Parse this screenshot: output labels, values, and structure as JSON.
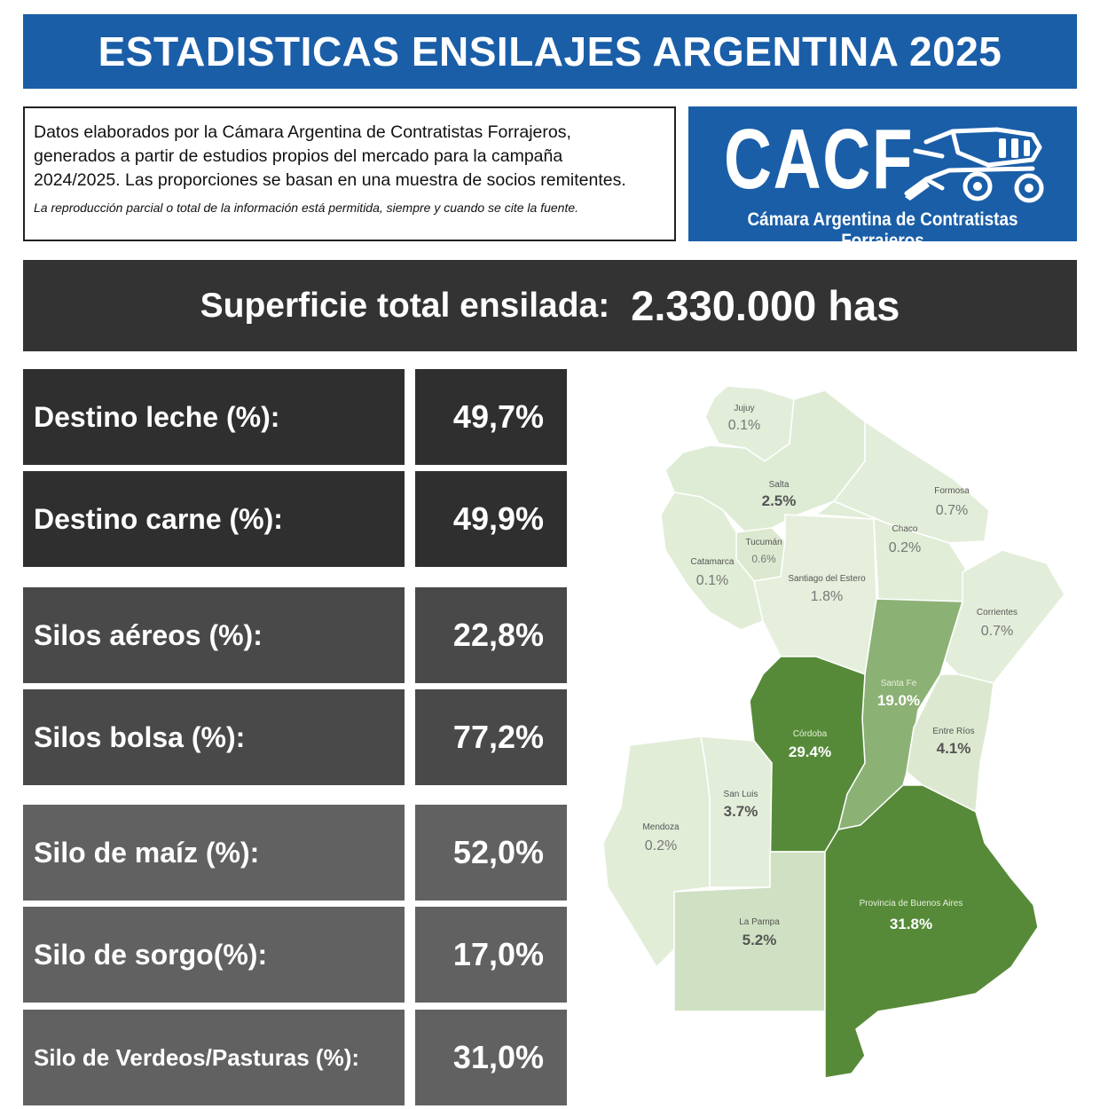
{
  "header": {
    "title": "ESTADISTICAS ENSILAJES ARGENTINA 2025"
  },
  "info": {
    "line1": "Datos elaborados por la Cámara Argentina de Contratistas Forrajeros,",
    "line2": "generados a partir de estudios propios del mercado para la campaña",
    "line3": "2024/2025. Las proporciones se basan en una muestra de socios remitentes.",
    "note": "La reproducción parcial o total de la información está permitida, siempre y cuando se cite la fuente."
  },
  "logo": {
    "acronym": "CACF",
    "subtitle": "Cámara Argentina de Contratistas Forrajeros",
    "color": "#1a5ea8"
  },
  "total": {
    "label": "Superficie total ensilada:",
    "value": "2.330.000 has"
  },
  "stats": [
    {
      "label": "Destino leche (%):",
      "value": "49,7%"
    },
    {
      "label": "Destino carne (%):",
      "value": "49,9%"
    },
    {
      "label": "Silos aéreos (%):",
      "value": "22,8%"
    },
    {
      "label": "Silos bolsa (%):",
      "value": "77,2%"
    },
    {
      "label": "Silo de maíz (%):",
      "value": "52,0%"
    },
    {
      "label": "Silo de sorgo(%):",
      "value": "17,0%"
    },
    {
      "label": "Silo de  Verdeos/Pasturas (%):",
      "value": "31,0%"
    }
  ],
  "map": {
    "provinces": [
      {
        "name": "Jujuy",
        "value": "0.1%"
      },
      {
        "name": "Salta",
        "value": "2.5%"
      },
      {
        "name": "Formosa",
        "value": "0.7%"
      },
      {
        "name": "Chaco",
        "value": "0.2%"
      },
      {
        "name": "Tucumán",
        "value": "0.6%"
      },
      {
        "name": "Catamarca",
        "value": "0.1%"
      },
      {
        "name": "Santiago del Estero",
        "value": "1.8%"
      },
      {
        "name": "Corrientes",
        "value": "0.7%"
      },
      {
        "name": "Santa Fe",
        "value": "19.0%"
      },
      {
        "name": "Córdoba",
        "value": "29.4%"
      },
      {
        "name": "Entre Ríos",
        "value": "4.1%"
      },
      {
        "name": "San Luis",
        "value": "3.7%"
      },
      {
        "name": "Mendoza",
        "value": "0.2%"
      },
      {
        "name": "La Pampa",
        "value": "5.2%"
      },
      {
        "name": "Provincia de Buenos Aires",
        "value": "31.8%"
      }
    ],
    "colors": {
      "low": "#dfecd5",
      "mid": "#8cb175",
      "high": "#568a38"
    }
  }
}
